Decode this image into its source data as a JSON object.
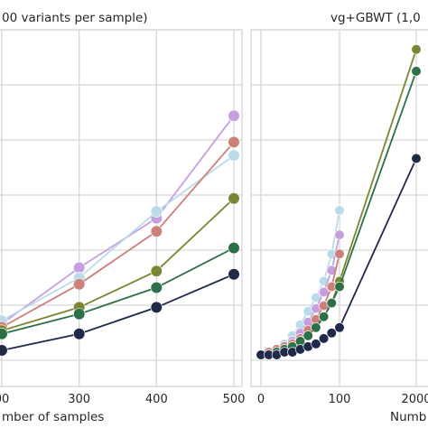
{
  "chart_data": [
    {
      "type": "line",
      "title": "00 variants per sample)",
      "xlabel": "mber of samples",
      "ylabel": "",
      "x_ticks": [
        "00",
        "300",
        "400",
        "500"
      ],
      "xlim": [
        192,
        512
      ],
      "ylim": [
        0,
        100
      ],
      "grid": true,
      "legend": "none",
      "x": [
        200,
        300,
        400,
        500
      ],
      "series": [
        {
          "color": "#c79fe0",
          "values": [
            11,
            28,
            43,
            74
          ]
        },
        {
          "color": "#b9dbea",
          "values": [
            12,
            25,
            45,
            62
          ]
        },
        {
          "color": "#cc8079",
          "values": [
            10,
            23,
            39,
            66
          ]
        },
        {
          "color": "#7b8633",
          "values": [
            9,
            16,
            27,
            49
          ]
        },
        {
          "color": "#2d6f47",
          "values": [
            8,
            14,
            22,
            34
          ]
        },
        {
          "color": "#1f2a48",
          "values": [
            3,
            8,
            16,
            26
          ]
        }
      ]
    },
    {
      "type": "line",
      "title": "vg+GBWT (1,0",
      "xlabel": "Numb",
      "ylabel": "",
      "x_ticks": [
        "0",
        "100",
        "2000"
      ],
      "xlim": [
        -5,
        230
      ],
      "ylim": [
        0,
        100
      ],
      "grid": true,
      "legend": "none",
      "x": [
        0,
        10,
        20,
        30,
        40,
        50,
        60,
        70,
        80,
        90,
        100,
        200
      ],
      "series": [
        {
          "color": "#b9dbea",
          "values": [
            1,
            2,
            3,
            5,
            8,
            12,
            17,
            22,
            28,
            38,
            54,
            null
          ]
        },
        {
          "color": "#c79fe0",
          "values": [
            1,
            2,
            3,
            4,
            6,
            9,
            13,
            18,
            24,
            32,
            45,
            null
          ]
        },
        {
          "color": "#cc8079",
          "values": [
            1,
            2,
            3,
            4,
            5,
            7,
            10,
            14,
            19,
            26,
            38,
            null
          ]
        },
        {
          "color": "#7b8633",
          "values": [
            1,
            1,
            2,
            3,
            4,
            6,
            8,
            11,
            15,
            20,
            28,
            113
          ]
        },
        {
          "color": "#2d6f47",
          "values": [
            1,
            1,
            2,
            3,
            4,
            6,
            8,
            11,
            15,
            20,
            26,
            105
          ]
        },
        {
          "color": "#1f2a48",
          "values": [
            1,
            1,
            1,
            2,
            2,
            3,
            4,
            5,
            7,
            9,
            11,
            73
          ]
        }
      ]
    }
  ]
}
